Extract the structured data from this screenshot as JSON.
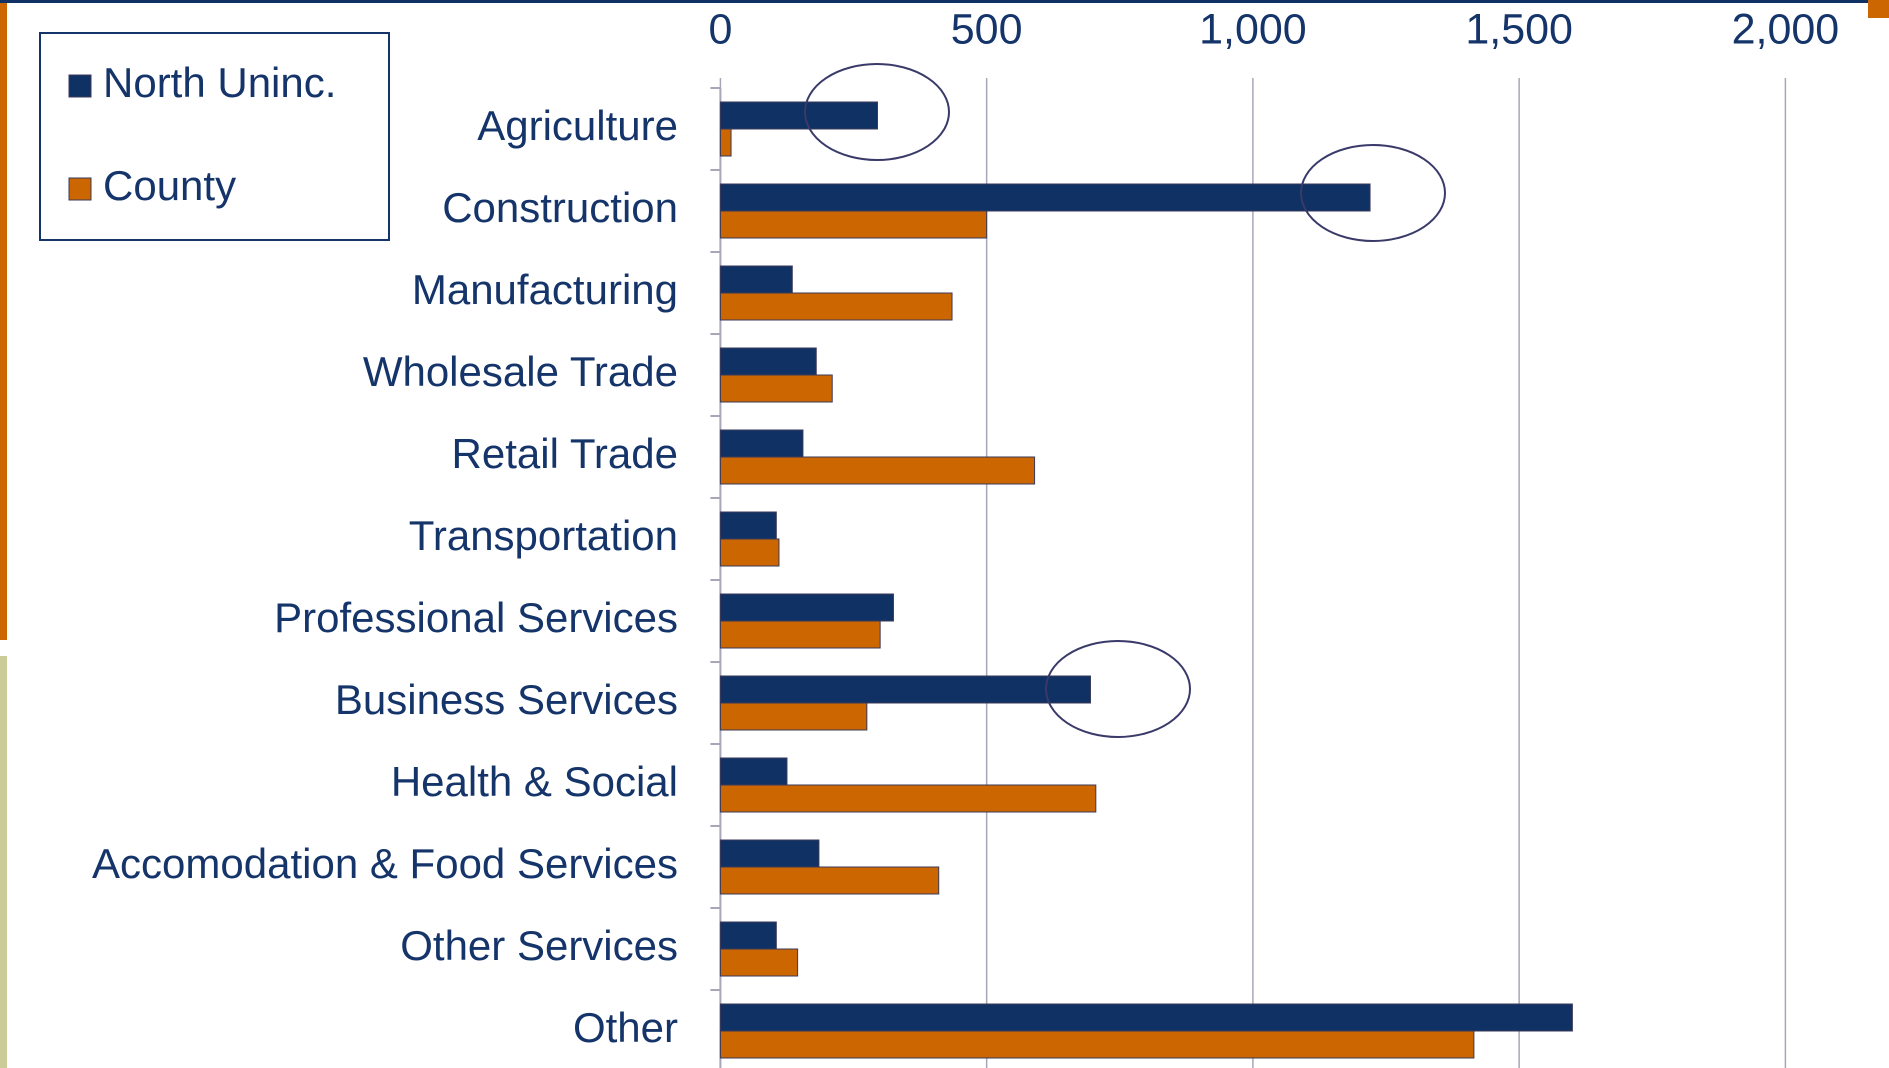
{
  "chart_data": {
    "type": "barh",
    "categories": [
      "Agriculture",
      "Construction",
      "Manufacturing",
      "Wholesale Trade",
      "Retail Trade",
      "Transportation",
      "Professional Services",
      "Business Services",
      "Health & Social",
      "Accomodation & Food Services",
      "Other Services",
      "Other"
    ],
    "series": [
      {
        "name": "North Uninc.",
        "color": "#0f3164",
        "values": [
          295,
          1220,
          135,
          180,
          155,
          105,
          325,
          695,
          125,
          185,
          105,
          1600
        ]
      },
      {
        "name": "County",
        "color": "#cc6600",
        "values": [
          20,
          500,
          435,
          210,
          590,
          110,
          300,
          275,
          705,
          410,
          145,
          1415
        ]
      }
    ],
    "xlim": [
      0,
      2000
    ],
    "xticks": [
      0,
      500,
      {
        "value": 1000,
        "label": "1,000"
      },
      {
        "value": 1500,
        "label": "1,500"
      },
      {
        "value": 2000,
        "label": "2,000"
      }
    ],
    "grid": true,
    "legend": "top-left"
  }
}
